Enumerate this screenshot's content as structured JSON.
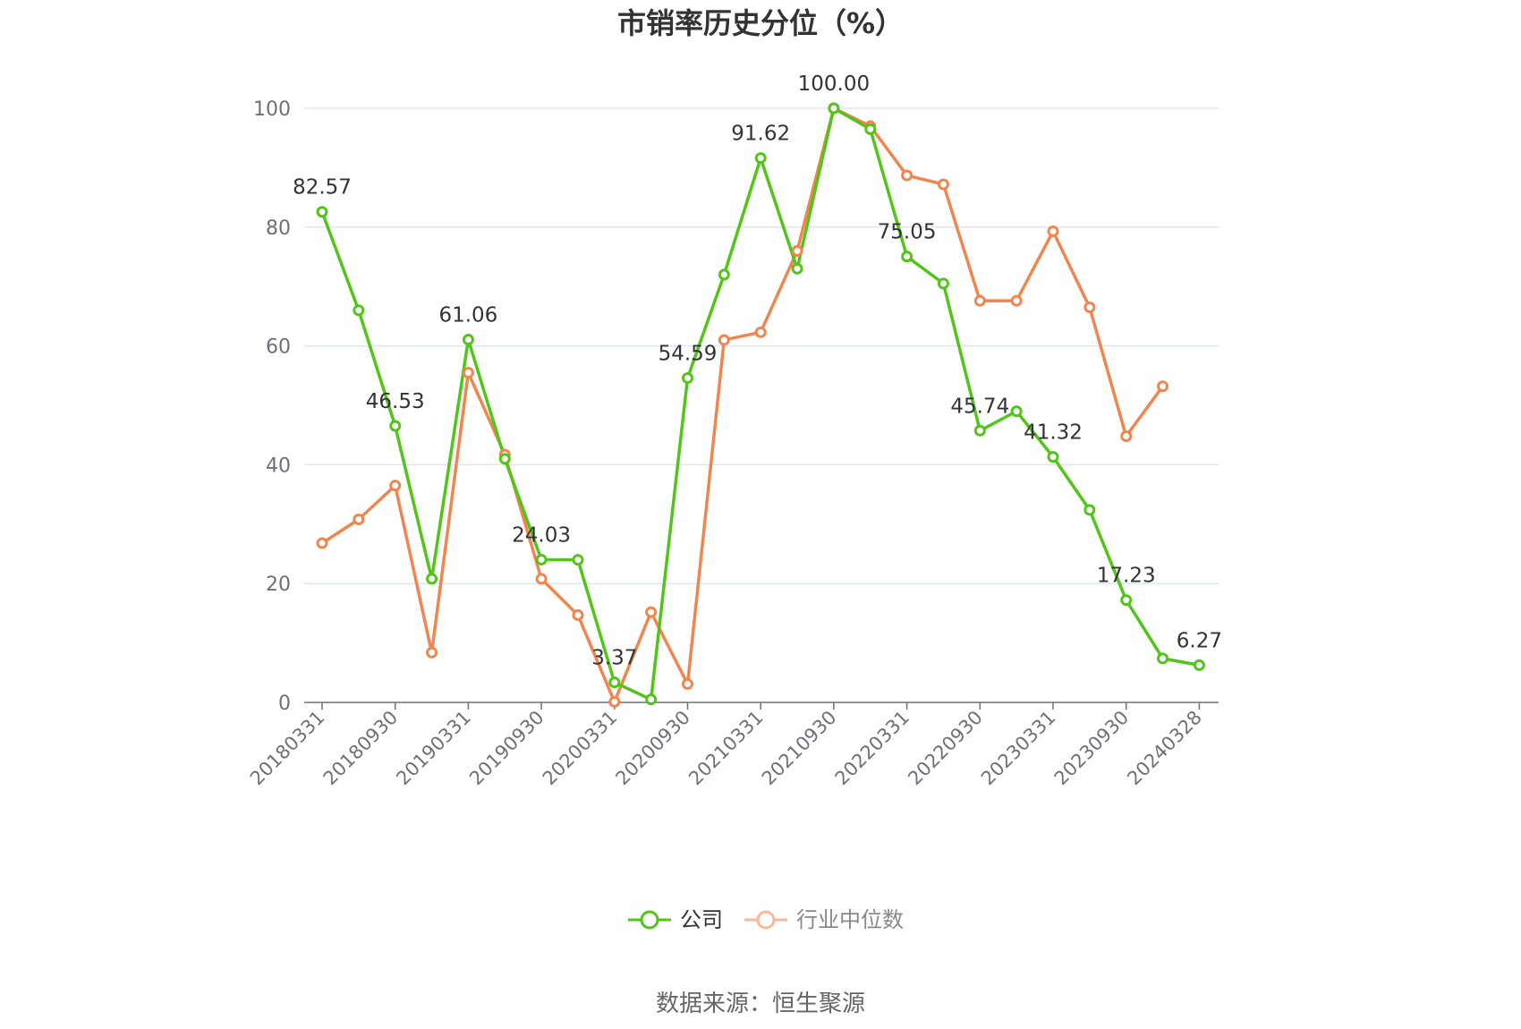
{
  "source_text": "数据来源：恒生聚源",
  "chart_data": {
    "type": "line",
    "title": "市销率历史分位（%）",
    "xlabel": "",
    "ylabel": "",
    "ylim": [
      0,
      100
    ],
    "yticks": [
      0,
      20,
      40,
      60,
      80,
      100
    ],
    "grid": true,
    "legend_position": "bottom",
    "x": [
      "20180331",
      "20180630",
      "20180930",
      "20181231",
      "20190331",
      "20190630",
      "20190930",
      "20191231",
      "20200331",
      "20200630",
      "20200930",
      "20201231",
      "20210331",
      "20210630",
      "20210930",
      "20211231",
      "20220331",
      "20220630",
      "20220930",
      "20221231",
      "20230331",
      "20230630",
      "20230930",
      "20231231",
      "20240328"
    ],
    "x_tick_labels": [
      "20180331",
      "20180930",
      "20190331",
      "20190930",
      "20200331",
      "20200930",
      "20210331",
      "20210930",
      "20220331",
      "20220930",
      "20230331",
      "20230930",
      "20240328"
    ],
    "series": [
      {
        "name": "公司",
        "color": "#52c41a",
        "values": [
          82.57,
          66.0,
          46.53,
          20.8,
          61.06,
          41.0,
          24.03,
          24.0,
          3.37,
          0.5,
          54.59,
          72.0,
          91.62,
          73.0,
          100.0,
          96.5,
          75.05,
          70.5,
          45.74,
          49.0,
          41.32,
          32.4,
          17.23,
          7.4,
          6.27
        ],
        "labels": [
          "82.57",
          "",
          "46.53",
          "",
          "61.06",
          "",
          "24.03",
          "",
          "3.37",
          "",
          "54.59",
          "",
          "91.62",
          "",
          "100.00",
          "",
          "75.05",
          "",
          "45.74",
          "",
          "41.32",
          "",
          "17.23",
          "",
          "6.27"
        ]
      },
      {
        "name": "行业中位数",
        "color": "#f0864f",
        "values": [
          26.8,
          30.8,
          36.5,
          8.4,
          55.5,
          41.7,
          20.8,
          14.7,
          0.1,
          15.2,
          3.1,
          61.0,
          62.3,
          76.0,
          100.0,
          97.0,
          88.7,
          87.2,
          67.6,
          67.6,
          79.3,
          66.5,
          44.8,
          53.2,
          null
        ]
      }
    ]
  }
}
